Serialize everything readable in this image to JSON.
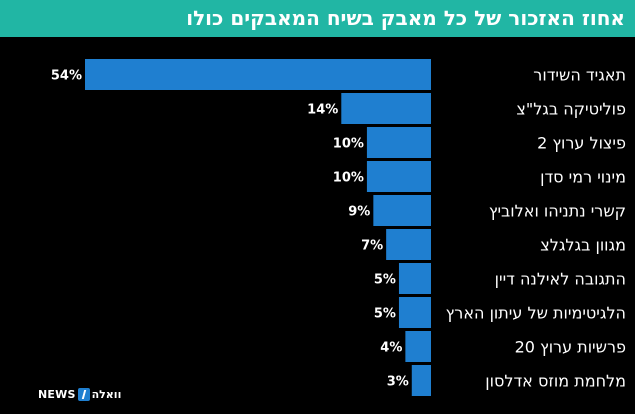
{
  "header": {
    "title": "אחוז האזכור של כל מאבק בשיח המאבקים כולו"
  },
  "logo": {
    "news_text": "NEWS",
    "brand_text": "וואלה"
  },
  "colors": {
    "header_bg": "#21b6a4",
    "bar": "#1f7fd0",
    "background": "#000000",
    "text": "#ffffff"
  },
  "chart_data": {
    "type": "bar",
    "orientation": "horizontal",
    "title": "אחוז האזכור של כל מאבק בשיח המאבקים כולו",
    "categories": [
      "תאגיד השידור",
      "פוליטיקה בגל\"צ",
      "פיצול ערוץ 2",
      "מינוי רמי סדן",
      "קשרי נתניהו ואלוביץ",
      "מגוון בגלגלצ",
      "התגובה לאילנה דיין",
      "הלגיטימיות של עיתון הארץ",
      "פרשיות ערוץ 20",
      "מלחמת מוזס אדלסון"
    ],
    "values": [
      54,
      14,
      10,
      10,
      9,
      7,
      5,
      5,
      4,
      3
    ],
    "value_labels": [
      "54%",
      "14%",
      "10%",
      "10%",
      "9%",
      "7%",
      "5%",
      "5%",
      "4%",
      "3%"
    ],
    "xlim": [
      0,
      54
    ],
    "grid": false,
    "legend": "none"
  }
}
